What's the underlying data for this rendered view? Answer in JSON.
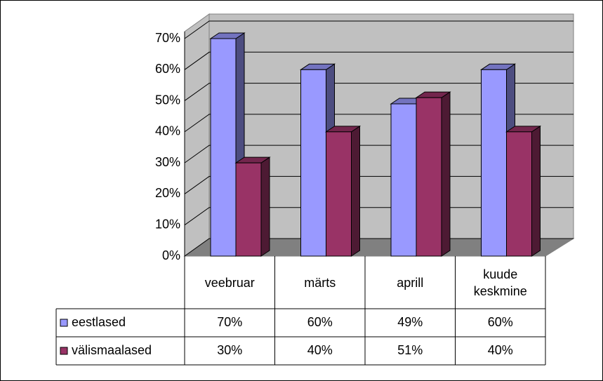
{
  "chart_data": {
    "type": "bar3d",
    "categories": [
      "veebruar",
      "märts",
      "aprill",
      "kuude keskmine"
    ],
    "series": [
      {
        "name": "eestlased",
        "color": "#9999ff",
        "values": [
          70,
          60,
          49,
          60
        ],
        "value_labels": [
          "70%",
          "60%",
          "49%",
          "60%"
        ]
      },
      {
        "name": "välismaalased",
        "color": "#993366",
        "values": [
          30,
          40,
          51,
          40
        ],
        "value_labels": [
          "30%",
          "40%",
          "51%",
          "40%"
        ]
      }
    ],
    "ylim": [
      0,
      70
    ],
    "yticks": [
      {
        "value": 0,
        "label": "0%"
      },
      {
        "value": 10,
        "label": "10%"
      },
      {
        "value": 20,
        "label": "20%"
      },
      {
        "value": 30,
        "label": "30%"
      },
      {
        "value": 40,
        "label": "40%"
      },
      {
        "value": 50,
        "label": "50%"
      },
      {
        "value": 60,
        "label": "60%"
      },
      {
        "value": 70,
        "label": "70%"
      }
    ],
    "grid": true
  }
}
